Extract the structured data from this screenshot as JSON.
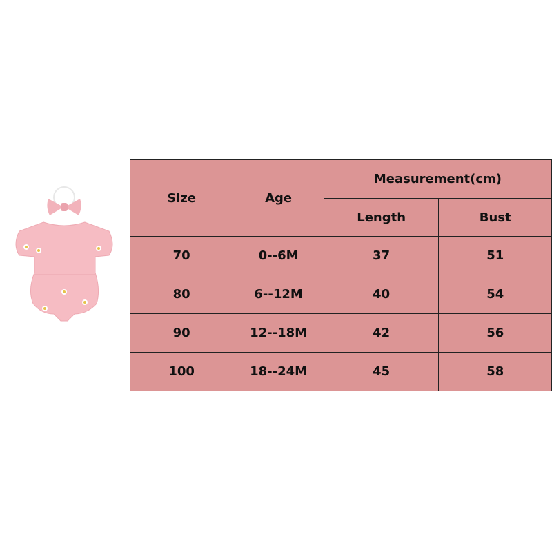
{
  "size_chart": {
    "headers": {
      "size": "Size",
      "age": "Age",
      "measurement": "Measurement(cm)",
      "length": "Length",
      "bust": "Bust"
    },
    "rows": [
      {
        "size": "70",
        "age": "0--6M",
        "length": "37",
        "bust": "51"
      },
      {
        "size": "80",
        "age": "6--12M",
        "length": "40",
        "bust": "54"
      },
      {
        "size": "90",
        "age": "12--18M",
        "length": "42",
        "bust": "56"
      },
      {
        "size": "100",
        "age": "18--24M",
        "length": "45",
        "bust": "58"
      }
    ],
    "colors": {
      "cell": "#dc9595",
      "border": "#222222",
      "product": "#f4b8bf"
    }
  }
}
